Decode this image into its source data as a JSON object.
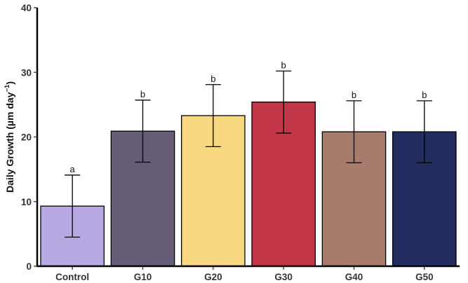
{
  "chart_data": {
    "type": "bar",
    "categories": [
      "Control",
      "G10",
      "G20",
      "G30",
      "G40",
      "G50"
    ],
    "values": [
      9.3,
      20.9,
      23.3,
      25.4,
      20.8,
      20.8
    ],
    "error_lower": [
      4.5,
      16.1,
      18.5,
      20.6,
      16.0,
      16.0
    ],
    "error_upper": [
      14.1,
      25.7,
      28.1,
      30.2,
      25.6,
      25.6
    ],
    "significance_labels": [
      "a",
      "b",
      "b",
      "b",
      "b",
      "b"
    ],
    "colors": [
      "#b8a9e3",
      "#665c78",
      "#f8d982",
      "#c23648",
      "#a87c6c",
      "#232c5e"
    ],
    "ylabel_main": "Daily Growth (µm day",
    "ylabel_sup": "−1",
    "ylabel_close": ")",
    "xlabel": "",
    "ylim": [
      0,
      40
    ],
    "yticks": [
      0,
      10,
      20,
      30,
      40
    ],
    "grid": false
  }
}
